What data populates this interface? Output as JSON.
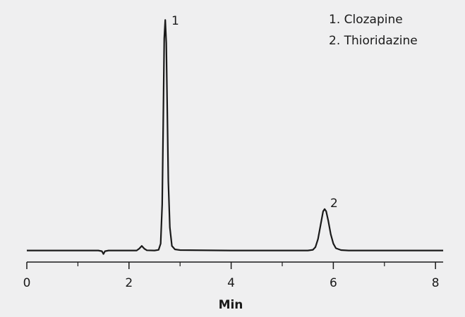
{
  "chart_data": {
    "type": "line",
    "x_label": "Min",
    "legend": [
      "1. Clozapine",
      "2. Thioridazine"
    ],
    "annotations": [
      "1",
      "2"
    ],
    "xlim": [
      0,
      8.15
    ],
    "ylim": [
      -5,
      105
    ],
    "xticks": [
      0,
      2,
      4,
      6,
      8
    ],
    "xminor_ticks": [
      1,
      3,
      5,
      7
    ],
    "series": [
      {
        "color": "#1a1a1a",
        "x": [
          0,
          1.0,
          1.4,
          1.47,
          1.5,
          1.53,
          1.6,
          2.15,
          2.2,
          2.25,
          2.3,
          2.35,
          2.5,
          2.58,
          2.62,
          2.65,
          2.67,
          2.69,
          2.71,
          2.73,
          2.75,
          2.77,
          2.8,
          2.84,
          2.9,
          3.0,
          4,
          5.5,
          5.6,
          5.65,
          5.7,
          5.75,
          5.8,
          5.83,
          5.86,
          5.9,
          5.95,
          6.0,
          6.05,
          6.15,
          6.3,
          8.15
        ],
        "values": [
          0,
          0,
          0,
          -0.3,
          -1.5,
          -0.3,
          0,
          0,
          0.8,
          2,
          0.8,
          0.1,
          0,
          0.3,
          3,
          20,
          55,
          92,
          100,
          90,
          60,
          30,
          10,
          2,
          0.5,
          0.2,
          0,
          0,
          0.3,
          1.5,
          5,
          11,
          17,
          18,
          17,
          13,
          7,
          3,
          1,
          0.2,
          0,
          0
        ]
      }
    ]
  }
}
